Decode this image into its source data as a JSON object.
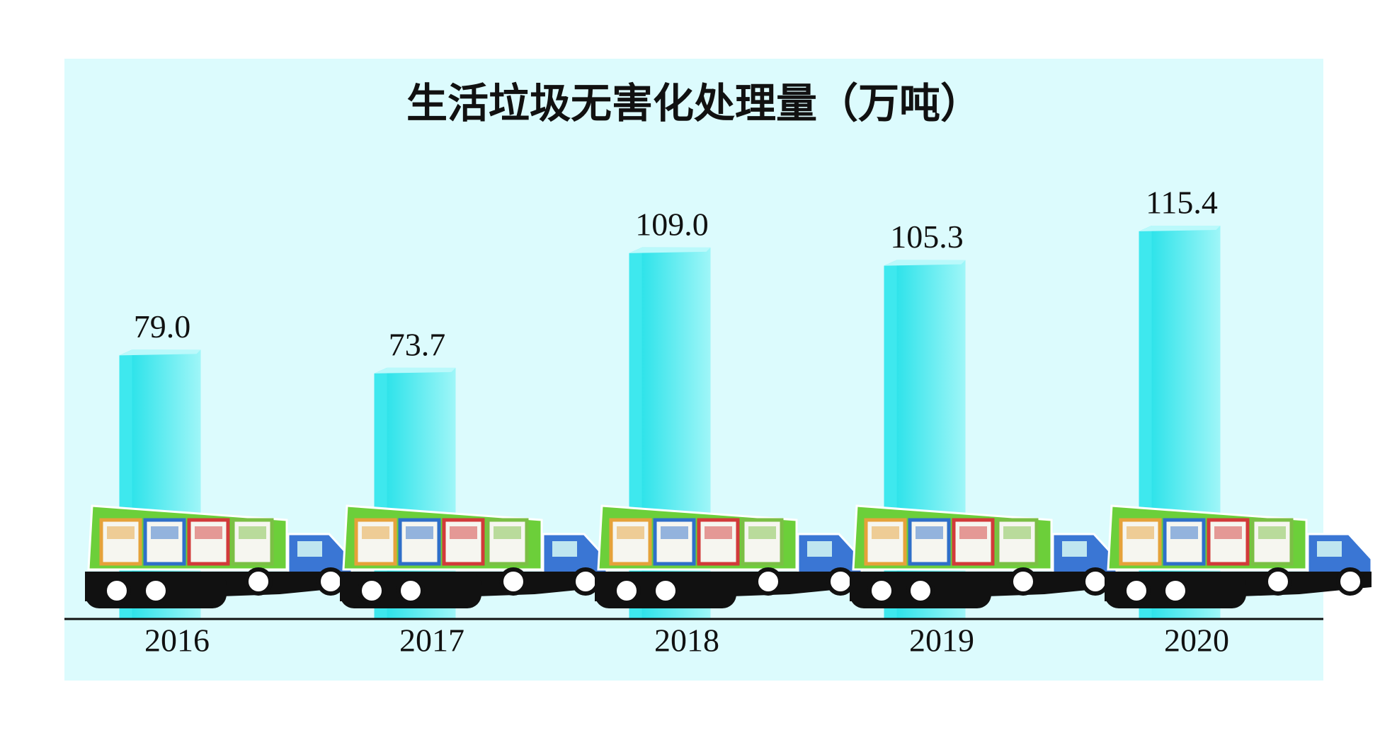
{
  "chart_data": {
    "type": "bar",
    "title": "生活垃圾无害化处理量（万吨）",
    "categories": [
      "2016",
      "2017",
      "2018",
      "2019",
      "2020"
    ],
    "values": [
      79.0,
      73.7,
      109.0,
      105.3,
      115.4
    ],
    "value_labels": [
      "79.0",
      "73.7",
      "109.0",
      "105.3",
      "115.4"
    ],
    "color": "#3ee8ee"
  }
}
